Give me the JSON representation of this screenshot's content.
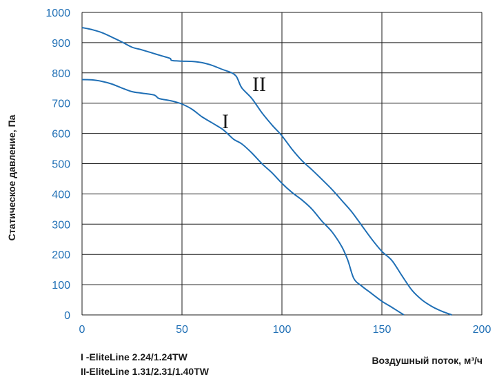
{
  "chart_data": {
    "type": "line",
    "ylabel": "Статическое давление, Па",
    "xlabel": "Воздушный поток, м³/ч",
    "xlim": [
      0,
      200
    ],
    "ylim": [
      0,
      1000
    ],
    "x_ticks": [
      0,
      50,
      100,
      150,
      200
    ],
    "y_ticks": [
      0,
      100,
      200,
      300,
      400,
      500,
      600,
      700,
      800,
      900,
      1000
    ],
    "grid": true,
    "colors": {
      "line": "#1f6fb5",
      "tick_text": "#1f6fb5",
      "grid": "#1a1a1a"
    },
    "series": [
      {
        "name": "I",
        "x": [
          0,
          5,
          10,
          15,
          20,
          25,
          30,
          36,
          38,
          40,
          45,
          50,
          55,
          60,
          65,
          70,
          73,
          76,
          80,
          85,
          90,
          95,
          100,
          105,
          110,
          115,
          120,
          125,
          130,
          133,
          136,
          140,
          145,
          150,
          155,
          161
        ],
        "y": [
          778,
          777,
          772,
          763,
          750,
          738,
          733,
          727,
          717,
          713,
          707,
          697,
          680,
          655,
          635,
          615,
          598,
          580,
          565,
          535,
          500,
          470,
          435,
          405,
          380,
          350,
          310,
          275,
          225,
          180,
          120,
          95,
          70,
          45,
          25,
          0
        ]
      },
      {
        "name": "II",
        "x": [
          0,
          5,
          10,
          15,
          20,
          25,
          30,
          35,
          40,
          44,
          45,
          50,
          55,
          60,
          65,
          70,
          75,
          77,
          78,
          80,
          85,
          90,
          95,
          100,
          105,
          110,
          115,
          120,
          125,
          130,
          135,
          140,
          145,
          150,
          155,
          160,
          165,
          170,
          175,
          180,
          185
        ],
        "y": [
          950,
          943,
          933,
          918,
          902,
          885,
          876,
          866,
          856,
          848,
          841,
          839,
          838,
          834,
          825,
          812,
          800,
          790,
          778,
          750,
          715,
          668,
          628,
          592,
          548,
          510,
          480,
          448,
          415,
          378,
          340,
          295,
          250,
          210,
          180,
          130,
          82,
          50,
          28,
          12,
          0
        ]
      }
    ],
    "curve_labels": [
      "II",
      "I"
    ],
    "legend": [
      "I -EliteLine 2.24/1.24TW",
      "II-EliteLine 1.31/2.31/1.40TW"
    ]
  }
}
